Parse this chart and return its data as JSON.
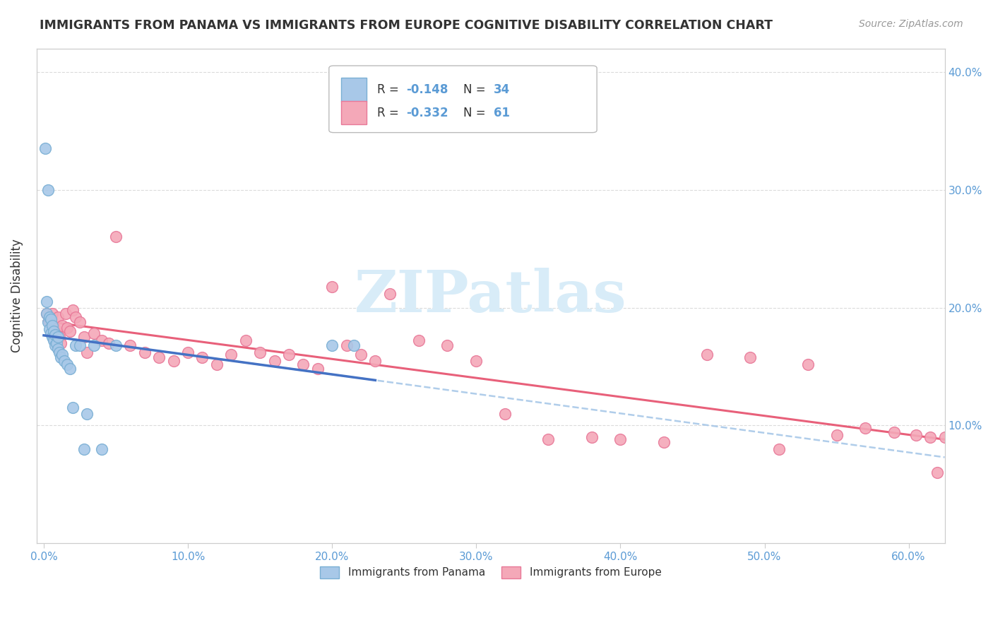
{
  "title": "IMMIGRANTS FROM PANAMA VS IMMIGRANTS FROM EUROPE COGNITIVE DISABILITY CORRELATION CHART",
  "source": "Source: ZipAtlas.com",
  "ylabel": "Cognitive Disability",
  "xlim": [
    -0.005,
    0.625
  ],
  "ylim": [
    0.0,
    0.42
  ],
  "xtick_vals": [
    0.0,
    0.1,
    0.2,
    0.3,
    0.4,
    0.5,
    0.6
  ],
  "ytick_vals": [
    0.1,
    0.2,
    0.3,
    0.4
  ],
  "legend_r1_val": "-0.148",
  "legend_n1": "34",
  "legend_r2_val": "-0.332",
  "legend_n2": "61",
  "panama_color": "#A8C8E8",
  "panama_edge_color": "#7AAFD4",
  "europe_color": "#F4A8B8",
  "europe_edge_color": "#E87898",
  "trend_panama_solid_color": "#4472C4",
  "trend_panama_dash_color": "#A8C8E8",
  "trend_europe_color": "#E8607A",
  "watermark_color": "#D8ECF8",
  "axis_label_color": "#5B9BD5",
  "text_color": "#333333",
  "legend_text_color": "#5B9BD5",
  "grid_color": "#CCCCCC",
  "panama_x": [
    0.001,
    0.002,
    0.002,
    0.003,
    0.003,
    0.004,
    0.004,
    0.005,
    0.005,
    0.006,
    0.006,
    0.007,
    0.007,
    0.008,
    0.008,
    0.009,
    0.01,
    0.01,
    0.011,
    0.012,
    0.013,
    0.014,
    0.016,
    0.018,
    0.02,
    0.022,
    0.025,
    0.028,
    0.03,
    0.035,
    0.04,
    0.05,
    0.2,
    0.215
  ],
  "panama_y": [
    0.335,
    0.205,
    0.195,
    0.3,
    0.188,
    0.192,
    0.182,
    0.19,
    0.178,
    0.185,
    0.175,
    0.18,
    0.172,
    0.177,
    0.168,
    0.17,
    0.175,
    0.165,
    0.162,
    0.158,
    0.16,
    0.155,
    0.152,
    0.148,
    0.115,
    0.168,
    0.168,
    0.08,
    0.11,
    0.168,
    0.08,
    0.168,
    0.168,
    0.168
  ],
  "europe_x": [
    0.002,
    0.004,
    0.005,
    0.006,
    0.007,
    0.008,
    0.009,
    0.01,
    0.011,
    0.012,
    0.013,
    0.015,
    0.016,
    0.018,
    0.02,
    0.022,
    0.025,
    0.028,
    0.03,
    0.035,
    0.04,
    0.045,
    0.05,
    0.06,
    0.07,
    0.08,
    0.09,
    0.1,
    0.11,
    0.12,
    0.13,
    0.14,
    0.15,
    0.16,
    0.17,
    0.18,
    0.19,
    0.2,
    0.21,
    0.22,
    0.23,
    0.24,
    0.26,
    0.28,
    0.3,
    0.32,
    0.35,
    0.38,
    0.4,
    0.43,
    0.46,
    0.49,
    0.51,
    0.53,
    0.55,
    0.57,
    0.59,
    0.605,
    0.615,
    0.62,
    0.625
  ],
  "europe_y": [
    0.195,
    0.188,
    0.19,
    0.195,
    0.185,
    0.182,
    0.178,
    0.192,
    0.175,
    0.17,
    0.185,
    0.195,
    0.183,
    0.18,
    0.198,
    0.192,
    0.188,
    0.175,
    0.162,
    0.178,
    0.172,
    0.17,
    0.26,
    0.168,
    0.162,
    0.158,
    0.155,
    0.162,
    0.158,
    0.152,
    0.16,
    0.172,
    0.162,
    0.155,
    0.16,
    0.152,
    0.148,
    0.218,
    0.168,
    0.16,
    0.155,
    0.212,
    0.172,
    0.168,
    0.155,
    0.11,
    0.088,
    0.09,
    0.088,
    0.086,
    0.16,
    0.158,
    0.08,
    0.152,
    0.092,
    0.098,
    0.094,
    0.092,
    0.09,
    0.06,
    0.09
  ]
}
